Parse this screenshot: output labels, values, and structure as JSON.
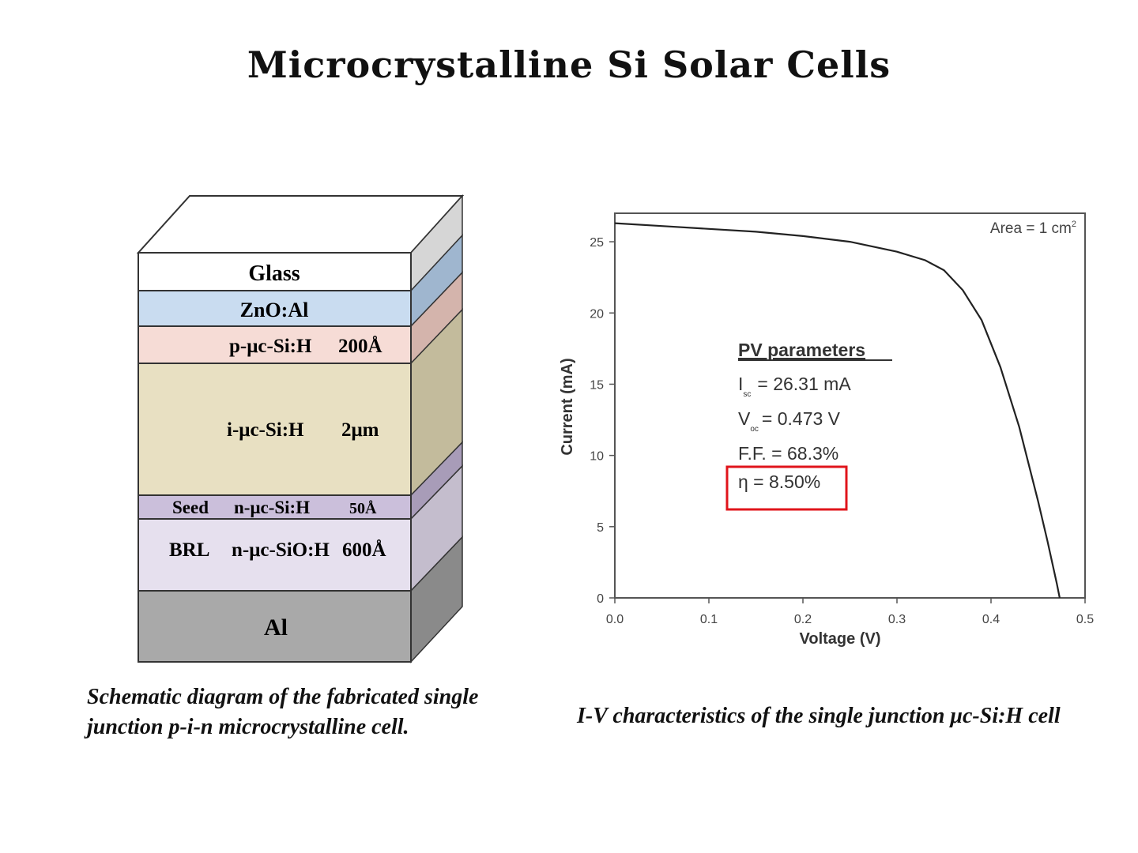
{
  "title": "Microcrystalline Si Solar Cells",
  "schematic": {
    "layers": [
      {
        "id": "glass",
        "label": "Glass",
        "color": "#ffffff",
        "side": "#d6d6d6"
      },
      {
        "id": "zno",
        "label": "ZnO:Al",
        "color": "#c9dcf0",
        "side": "#9fb6cf"
      },
      {
        "id": "p",
        "label": "p-μc-Si:H",
        "thickness": "200Å",
        "color": "#f6dcd6",
        "side": "#d4b4ac"
      },
      {
        "id": "i",
        "label": "i-μc-Si:H",
        "thickness": "2μm",
        "color": "#e8e0c2",
        "side": "#c3bb9c"
      },
      {
        "id": "seed",
        "prefix": "Seed",
        "label": "n-μc-Si:H",
        "thickness": "50Å",
        "color": "#cbbfdb",
        "side": "#a89cb8"
      },
      {
        "id": "brl",
        "prefix": "BRL",
        "label": "n-μc-SiO:H",
        "thickness": "600Å",
        "color": "#e6e0ee",
        "side": "#c4bdcd"
      },
      {
        "id": "al",
        "label": "Al",
        "color": "#a9a9a9",
        "side": "#8a8a8a"
      }
    ],
    "caption_line1": "Schematic diagram of the fabricated single",
    "caption_line2": "junction p-i-n microcrystalline cell."
  },
  "chart_data": {
    "type": "line",
    "xlabel": "Voltage (V)",
    "ylabel": "Current (mA)",
    "xlim": [
      0,
      0.5
    ],
    "ylim": [
      0,
      27
    ],
    "xticks": [
      "0.0",
      "0.1",
      "0.2",
      "0.3",
      "0.4",
      "0.5"
    ],
    "yticks": [
      "0",
      "5",
      "10",
      "15",
      "20",
      "25"
    ],
    "series": [
      {
        "x": [
          0,
          0.05,
          0.1,
          0.15,
          0.2,
          0.25,
          0.3,
          0.33,
          0.35,
          0.37,
          0.39,
          0.41,
          0.43,
          0.45,
          0.46,
          0.47,
          0.473
        ],
        "y": [
          26.3,
          26.1,
          25.9,
          25.7,
          25.4,
          25.0,
          24.3,
          23.7,
          23.0,
          21.6,
          19.5,
          16.2,
          12.0,
          6.8,
          4.0,
          1.0,
          0
        ]
      }
    ],
    "area_label": "Area = 1 cm",
    "area_sup": "2",
    "pv_heading": "PV parameters",
    "isc_symbol": "I",
    "isc_sub": "sc",
    "isc_value": "= 26.31 mA",
    "voc_symbol": "V",
    "voc_sub": "oc",
    "voc_value": "= 0.473 V",
    "ff": "F.F. = 68.3%",
    "eta": "η = 8.50%",
    "highlight_color": "#e0141b",
    "caption": "I-V characteristics of the single junction μc-Si:H cell"
  }
}
